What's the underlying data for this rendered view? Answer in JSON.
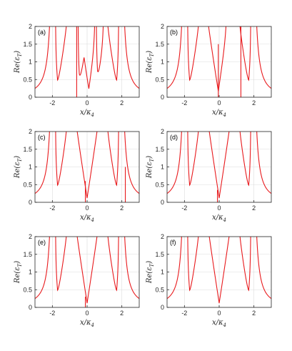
{
  "figure": {
    "xlabel": "x/κ",
    "xlabel_sub": "4",
    "ylabel": "Re(ε",
    "ylabel_sub": "T",
    "ylabel_end": ")",
    "colors": {
      "line": "#e8191c",
      "grid": "#dcdcdc",
      "axis": "#262626"
    }
  },
  "chart_data": [
    {
      "type": "line",
      "panel_label": "(a)",
      "xlim": [
        -3,
        3
      ],
      "ylim": [
        0,
        2
      ],
      "xticks": [
        -2,
        0,
        2
      ],
      "yticks": [
        0,
        0.5,
        1,
        1.5,
        2
      ],
      "ytick_labels": [
        "0",
        "0.5",
        "1",
        "1.5",
        "2"
      ],
      "grid": true,
      "curve": "Re(eps_T) with zeros near x = -1.7, -0.5, 0.1, 0.6, 1.7",
      "zeros": [
        -1.7,
        -0.45,
        0.1,
        0.6,
        1.7
      ],
      "poles": [
        -1.85,
        -1.0,
        -0.55,
        0.5,
        1.0,
        1.85
      ],
      "spikes": [
        {
          "x": -0.6,
          "height": 2
        }
      ],
      "tail_value_at_x3": 0.25
    },
    {
      "type": "line",
      "panel_label": "(b)",
      "xlim": [
        -3,
        3
      ],
      "ylim": [
        0,
        2
      ],
      "xticks": [
        -2,
        0,
        2
      ],
      "yticks": [
        0,
        0.5,
        1,
        1.5,
        2
      ],
      "ytick_labels": [
        "0",
        "0.5",
        "1",
        "1.5",
        "2"
      ],
      "grid": true,
      "zeros": [
        -1.7,
        -0.05,
        1.7
      ],
      "poles": [
        -1.85,
        -1.0,
        0.5,
        1.0,
        1.85
      ],
      "spikes": [
        {
          "x": -0.05,
          "height": 1.5
        },
        {
          "x": 1.25,
          "height": 2
        }
      ],
      "tail_value_at_x3": 0.25
    },
    {
      "type": "line",
      "panel_label": "(c)",
      "xlim": [
        -3,
        3
      ],
      "ylim": [
        0,
        2
      ],
      "xticks": [
        -2,
        0,
        2
      ],
      "yticks": [
        0,
        0.5,
        1,
        1.5,
        2
      ],
      "ytick_labels": [
        "0",
        "0.5",
        "1",
        "1.5",
        "2"
      ],
      "grid": true,
      "zeros": [
        -1.7,
        0.0,
        1.7
      ],
      "poles": [
        -1.85,
        -1.0,
        1.0,
        1.85
      ],
      "spikes": [
        {
          "x": -0.1,
          "height": 0.6
        },
        {
          "x": 2.2,
          "height": 1.0
        }
      ],
      "tail_value_at_x3": 0.25
    },
    {
      "type": "line",
      "panel_label": "(d)",
      "xlim": [
        -3,
        3
      ],
      "ylim": [
        0,
        2
      ],
      "xticks": [
        -2,
        0,
        2
      ],
      "yticks": [
        0,
        0.5,
        1,
        1.5,
        2
      ],
      "ytick_labels": [
        "0",
        "0.5",
        "1",
        "1.5",
        "2"
      ],
      "grid": true,
      "zeros": [
        -1.7,
        0.0,
        1.7
      ],
      "poles": [
        -1.85,
        -1.0,
        1.0,
        1.85
      ],
      "spikes": [
        {
          "x": -0.1,
          "height": 0.35
        }
      ],
      "tail_value_at_x3": 0.25
    },
    {
      "type": "line",
      "panel_label": "(e)",
      "xlim": [
        -3,
        3
      ],
      "ylim": [
        0,
        2
      ],
      "xticks": [
        -2,
        0,
        2
      ],
      "yticks": [
        0,
        0.5,
        1,
        1.5,
        2
      ],
      "ytick_labels": [
        "0",
        "0.5",
        "1",
        "1.5",
        "2"
      ],
      "grid": true,
      "zeros": [
        -1.7,
        0.0,
        1.7
      ],
      "poles": [
        -1.85,
        -1.0,
        1.0,
        1.85
      ],
      "spikes": [
        {
          "x": -0.1,
          "height": 0.3
        }
      ],
      "tail_value_at_x3": 0.25
    },
    {
      "type": "line",
      "panel_label": "(f)",
      "xlim": [
        -3,
        3
      ],
      "ylim": [
        0,
        2
      ],
      "xticks": [
        -2,
        0,
        2
      ],
      "yticks": [
        0,
        0.5,
        1,
        1.5,
        2
      ],
      "ytick_labels": [
        "0",
        "0.5",
        "1",
        "1.5",
        "2"
      ],
      "grid": true,
      "zeros": [
        -1.7,
        0.0,
        1.7
      ],
      "poles": [
        -1.85,
        -1.0,
        1.0,
        1.85
      ],
      "spikes": [],
      "tail_value_at_x3": 0.25
    }
  ]
}
